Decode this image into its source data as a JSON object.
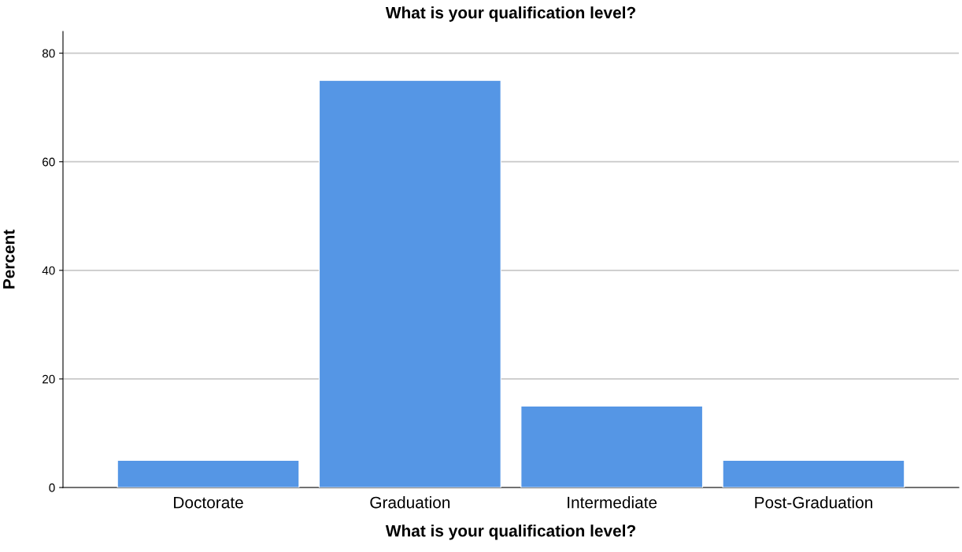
{
  "chart_data": {
    "type": "bar",
    "title": "What is your qualification level?",
    "xlabel": "What is your qualification level?",
    "ylabel": "Percent",
    "categories": [
      "Doctorate",
      "Graduation",
      "Intermediate",
      "Post-Graduation"
    ],
    "values": [
      5,
      75,
      15,
      5
    ],
    "color": "#5596e5",
    "ylim": [
      0,
      84
    ],
    "yticks": [
      0,
      20,
      40,
      60,
      80
    ],
    "grid": "y",
    "legend": false
  }
}
